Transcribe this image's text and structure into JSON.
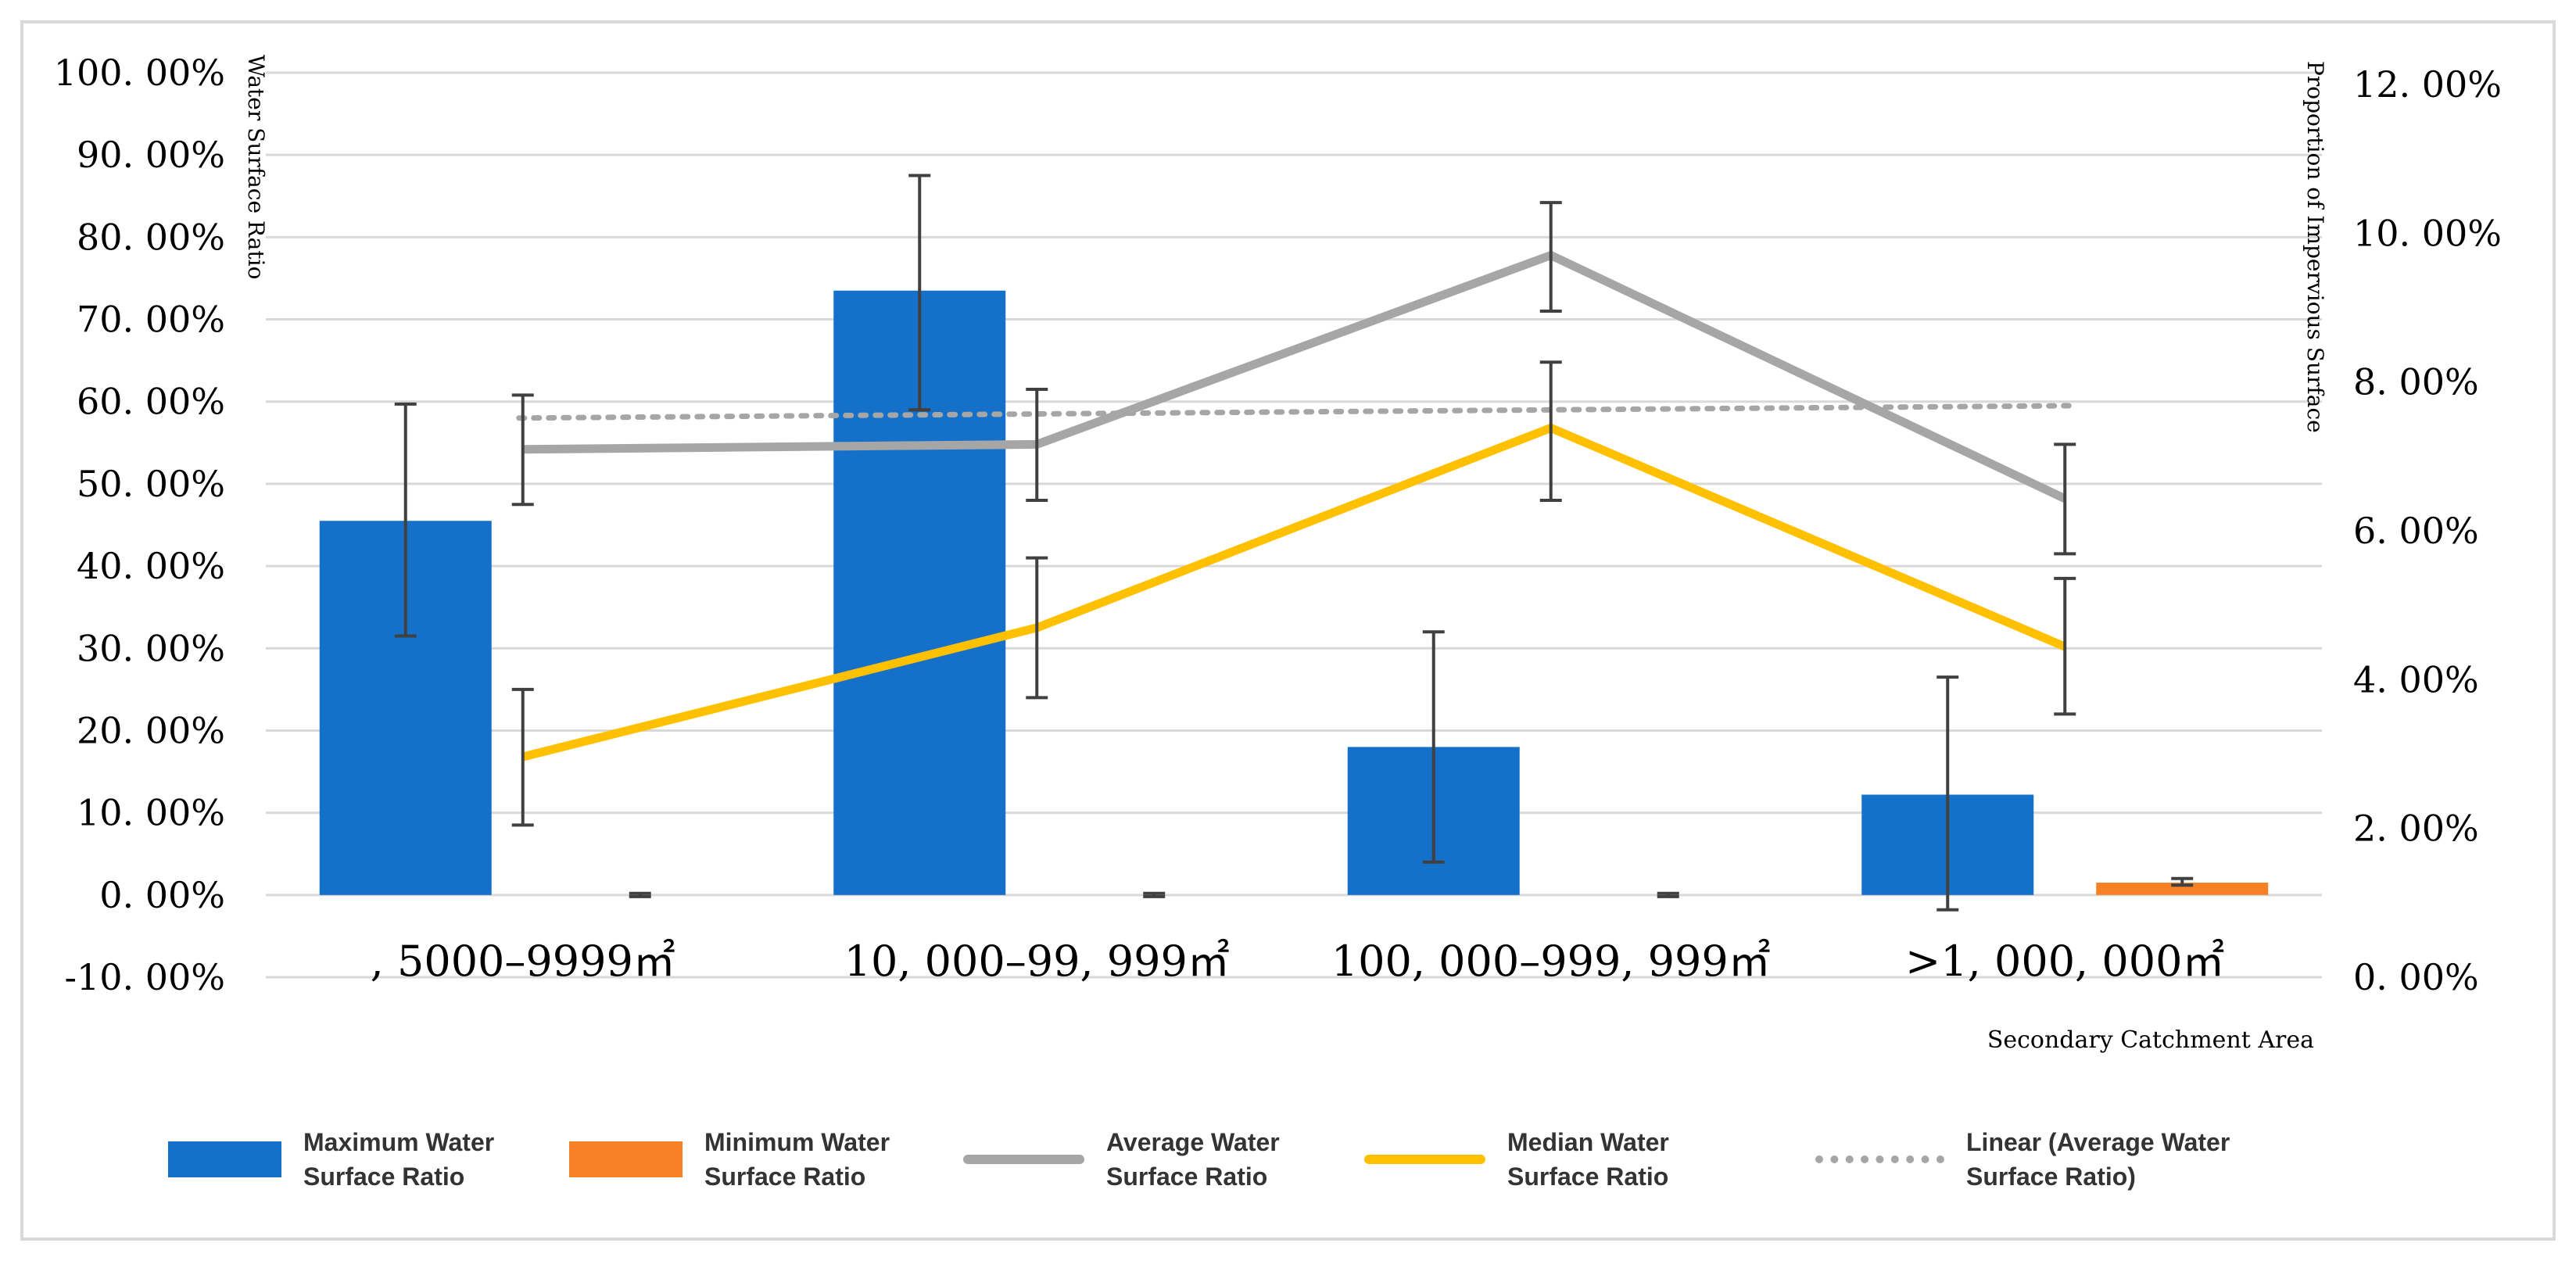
{
  "chart_data": {
    "type": "bar",
    "title": "",
    "xlabel": "Secondary Catchment Area",
    "ylabel": "Water Surface Ratio",
    "y2label": "Proportion of Impervious Surface",
    "categories": [
      ", 5000–9999㎡",
      "10, 000–99, 999㎡",
      "100, 000–999, 999㎡",
      ">1, 000, 000㎡"
    ],
    "ylim": [
      -0.1,
      1.0
    ],
    "y2lim": [
      0.0,
      0.12
    ],
    "yticks": [
      "100. 00%",
      "90. 00%",
      "80. 00%",
      "70. 00%",
      "60. 00%",
      "50. 00%",
      "40. 00%",
      "30. 00%",
      "20. 00%",
      "10. 00%",
      "0. 00%",
      "-10. 00%"
    ],
    "y2ticks": [
      "12. 00%",
      "10. 00%",
      "8. 00%",
      "6. 00%",
      "4. 00%",
      "2. 00%",
      "0. 00%"
    ],
    "grid": true,
    "legend_position": "bottom",
    "series": [
      {
        "name": "Maximum Water Surface Ratio",
        "kind": "bar",
        "color": "#1570c9",
        "values": [
          0.455,
          0.735,
          0.18,
          0.122
        ],
        "error_low": [
          0.315,
          0.59,
          0.04,
          -0.018
        ],
        "error_high": [
          0.597,
          0.875,
          0.32,
          0.265
        ]
      },
      {
        "name": "Minimum Water Surface Ratio",
        "kind": "bar",
        "color": "#f58025",
        "values": [
          0.0,
          0.0,
          0.0,
          0.015
        ],
        "error_low": [
          -0.002,
          -0.002,
          -0.002,
          0.012
        ],
        "error_high": [
          0.002,
          0.002,
          0.002,
          0.02
        ]
      },
      {
        "name": "Average Water Surface Ratio",
        "kind": "line",
        "color": "#a6a6a6",
        "values": [
          0.542,
          0.548,
          0.778,
          0.482
        ],
        "error_low": [
          0.475,
          0.48,
          0.71,
          0.415
        ],
        "error_high": [
          0.608,
          0.615,
          0.842,
          0.548
        ]
      },
      {
        "name": "Median Water Surface Ratio",
        "kind": "line",
        "color": "#ffc000",
        "values": [
          0.168,
          0.325,
          0.568,
          0.302
        ],
        "error_low": [
          0.085,
          0.24,
          0.48,
          0.22
        ],
        "error_high": [
          0.25,
          0.41,
          0.648,
          0.385
        ]
      },
      {
        "name": "Linear (Average Water Surface Ratio)",
        "kind": "trendline",
        "color": "#a6a6a6",
        "values": [
          0.58,
          0.585,
          0.59,
          0.595
        ]
      }
    ]
  },
  "legend": [
    {
      "label": "Maximum Water\nSurface Ratio",
      "kind": "bar",
      "color": "#1570c9"
    },
    {
      "label": "Minimum Water\nSurface Ratio",
      "kind": "bar",
      "color": "#f58025"
    },
    {
      "label": "Average Water\nSurface Ratio",
      "kind": "line",
      "color": "#a6a6a6"
    },
    {
      "label": "Median Water\nSurface Ratio",
      "kind": "line",
      "color": "#ffc000"
    },
    {
      "label": "Linear (Average Water\nSurface Ratio)",
      "kind": "dotted",
      "color": "#a6a6a6"
    }
  ]
}
